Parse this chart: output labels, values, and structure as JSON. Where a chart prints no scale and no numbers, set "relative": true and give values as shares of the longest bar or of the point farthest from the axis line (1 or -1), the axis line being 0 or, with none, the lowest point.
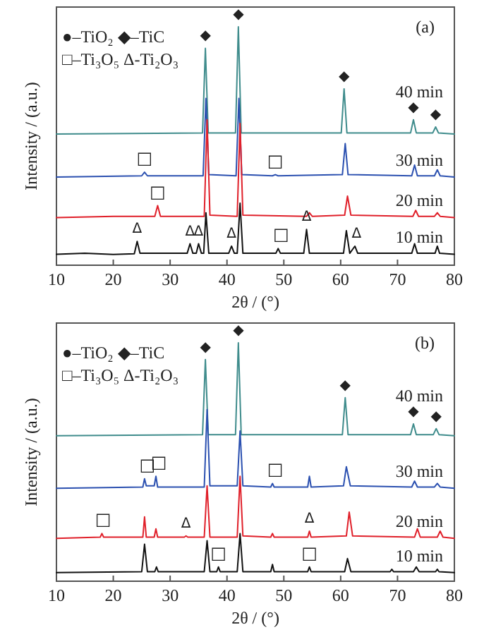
{
  "chart_data": [
    {
      "type": "line",
      "title": "(a)",
      "xlabel": "2θ / (°)",
      "ylabel": "Intensity / (a.u.)",
      "relative": true,
      "xlim": [
        10,
        80
      ],
      "xticks": [
        10,
        20,
        30,
        40,
        50,
        60,
        70,
        80
      ],
      "series": [
        {
          "name": "40 min",
          "color": "#3f8c8c",
          "x": [
            10,
            35.7,
            36.2,
            36.7,
            41.5,
            42,
            42.5,
            60.1,
            60.6,
            61.1,
            72.3,
            72.8,
            73.3,
            76.2,
            76.7,
            77.2,
            80
          ],
          "values": [
            0.55,
            0.555,
            0.91,
            0.555,
            0.555,
            1.0,
            0.555,
            0.555,
            0.74,
            0.555,
            0.555,
            0.61,
            0.555,
            0.555,
            0.58,
            0.555,
            0.55
          ]
        },
        {
          "name": "30 min",
          "color": "#2b50b0",
          "x": [
            10,
            25,
            25.5,
            26,
            35.8,
            36.3,
            36.8,
            41.6,
            42.1,
            42.6,
            48,
            48.5,
            49,
            60.3,
            60.8,
            61.3,
            72.5,
            73,
            73.5,
            76.5,
            77,
            77.5,
            80
          ],
          "values": [
            0.37,
            0.375,
            0.39,
            0.375,
            0.375,
            0.7,
            0.38,
            0.375,
            0.7,
            0.38,
            0.375,
            0.38,
            0.375,
            0.38,
            0.51,
            0.38,
            0.375,
            0.42,
            0.375,
            0.375,
            0.4,
            0.375,
            0.37
          ]
        },
        {
          "name": "20 min",
          "color": "#e0202a",
          "x": [
            10,
            20,
            27.3,
            27.8,
            28.3,
            36,
            36.5,
            37,
            41.8,
            42.3,
            42.8,
            54,
            54.5,
            55,
            60.7,
            61.2,
            61.8,
            72.7,
            73.2,
            73.7,
            76.5,
            77,
            77.5,
            80
          ],
          "values": [
            0.2,
            0.205,
            0.205,
            0.25,
            0.205,
            0.205,
            0.61,
            0.21,
            0.205,
            0.595,
            0.21,
            0.205,
            0.22,
            0.205,
            0.21,
            0.29,
            0.21,
            0.205,
            0.23,
            0.205,
            0.205,
            0.22,
            0.205,
            0.2
          ]
        },
        {
          "name": "10 min",
          "color": "#111111",
          "x": [
            10,
            15,
            20,
            23.7,
            24.2,
            24.7,
            27,
            33,
            33.5,
            34,
            34.6,
            35,
            35.5,
            35.9,
            36.3,
            36.8,
            40.3,
            40.8,
            41.3,
            41.8,
            42.3,
            42.8,
            48.6,
            49,
            49.4,
            53.5,
            54,
            54.5,
            60.5,
            61,
            61.6,
            62.5,
            63,
            72.5,
            73,
            73.5,
            76.6,
            77,
            77.4,
            80
          ],
          "values": [
            0.046,
            0.05,
            0.045,
            0.048,
            0.1,
            0.05,
            0.05,
            0.05,
            0.09,
            0.05,
            0.05,
            0.09,
            0.05,
            0.05,
            0.22,
            0.05,
            0.05,
            0.08,
            0.05,
            0.05,
            0.26,
            0.05,
            0.05,
            0.07,
            0.05,
            0.05,
            0.15,
            0.05,
            0.05,
            0.145,
            0.05,
            0.08,
            0.05,
            0.05,
            0.09,
            0.05,
            0.05,
            0.08,
            0.05,
            0.046
          ]
        }
      ],
      "annotations": [
        "●–TiO₂ ◆–TiC",
        "□–Ti₃O₅ Δ-Ti₂O₃",
        {
          "text": "◆",
          "x": 36.2,
          "y": 0.91
        },
        {
          "text": "◆",
          "x": 42,
          "y": 1.0
        },
        {
          "text": "◆",
          "x": 60.6,
          "y": 0.74
        },
        {
          "text": "◆",
          "x": 72.8,
          "y": 0.61
        },
        {
          "text": "◆",
          "x": 76.7,
          "y": 0.58
        },
        {
          "text": "□",
          "x": 25.5,
          "y": 0.39
        },
        {
          "text": "□",
          "x": 48.5,
          "y": 0.38
        },
        {
          "text": "□",
          "x": 27.8,
          "y": 0.25
        },
        {
          "text": "□",
          "x": 49.5,
          "y": 0.07
        },
        {
          "text": "Δ",
          "x": 24.2,
          "y": 0.1
        },
        {
          "text": "Δ",
          "x": 33.5,
          "y": 0.09
        },
        {
          "text": "Δ",
          "x": 35,
          "y": 0.09
        },
        {
          "text": "Δ",
          "x": 40.8,
          "y": 0.08
        },
        {
          "text": "Δ",
          "x": 54,
          "y": 0.15
        },
        {
          "text": "Δ",
          "x": 62.8,
          "y": 0.08
        }
      ]
    },
    {
      "type": "line",
      "title": "(b)",
      "xlabel": "2θ / (°)",
      "ylabel": "Intensity / (a.u.)",
      "relative": true,
      "xlim": [
        10,
        80
      ],
      "xticks": [
        10,
        20,
        30,
        40,
        50,
        60,
        70,
        80
      ],
      "series": [
        {
          "name": "40 min",
          "color": "#3f8c8c",
          "x": [
            10,
            35.7,
            36.2,
            36.7,
            41.5,
            42,
            42.5,
            60.3,
            60.8,
            61.3,
            72.3,
            72.8,
            73.3,
            76.3,
            76.8,
            77.3,
            80
          ],
          "values": [
            0.61,
            0.615,
            0.93,
            0.615,
            0.615,
            1.0,
            0.615,
            0.615,
            0.77,
            0.615,
            0.615,
            0.66,
            0.615,
            0.615,
            0.64,
            0.615,
            0.61
          ]
        },
        {
          "name": "30 min",
          "color": "#2b50b0",
          "x": [
            10,
            25.2,
            25.5,
            25.8,
            27.2,
            27.5,
            27.8,
            36,
            36.5,
            37,
            41.8,
            42.3,
            42.8,
            47.7,
            48,
            48.3,
            54.2,
            54.5,
            54.8,
            60.5,
            61,
            61.7,
            72.5,
            73,
            73.5,
            76.5,
            77,
            77.5,
            80
          ],
          "values": [
            0.39,
            0.395,
            0.43,
            0.4,
            0.4,
            0.44,
            0.395,
            0.395,
            0.72,
            0.4,
            0.4,
            0.63,
            0.4,
            0.395,
            0.41,
            0.395,
            0.395,
            0.44,
            0.395,
            0.4,
            0.48,
            0.4,
            0.395,
            0.42,
            0.395,
            0.395,
            0.41,
            0.395,
            0.39
          ]
        },
        {
          "name": "20 min",
          "color": "#e0202a",
          "x": [
            10,
            17.7,
            18,
            18.3,
            25.2,
            25.5,
            25.8,
            27.2,
            27.5,
            27.8,
            32.5,
            32.8,
            33.1,
            36,
            36.5,
            37,
            41.8,
            42.3,
            42.8,
            47.7,
            48,
            48.3,
            54.2,
            54.5,
            54.8,
            61,
            61.5,
            62.1,
            73,
            73.5,
            74,
            77,
            77.5,
            78,
            80
          ],
          "values": [
            0.18,
            0.185,
            0.2,
            0.185,
            0.185,
            0.27,
            0.185,
            0.185,
            0.22,
            0.185,
            0.185,
            0.19,
            0.185,
            0.185,
            0.4,
            0.185,
            0.185,
            0.44,
            0.19,
            0.185,
            0.2,
            0.185,
            0.185,
            0.21,
            0.185,
            0.19,
            0.29,
            0.19,
            0.185,
            0.22,
            0.185,
            0.185,
            0.21,
            0.185,
            0.18
          ]
        },
        {
          "name": "10 min",
          "color": "#111111",
          "x": [
            10,
            25,
            25.5,
            26,
            27.3,
            27.6,
            27.9,
            36,
            36.5,
            37,
            38.2,
            38.5,
            38.8,
            41.8,
            42.3,
            42.8,
            47.7,
            48,
            48.3,
            54.2,
            54.5,
            54.8,
            60.7,
            61.2,
            61.8,
            68.7,
            69,
            69.3,
            72.8,
            73.3,
            73.8,
            76.7,
            77,
            77.3,
            80
          ],
          "values": [
            0.036,
            0.04,
            0.155,
            0.04,
            0.04,
            0.06,
            0.04,
            0.04,
            0.17,
            0.04,
            0.04,
            0.06,
            0.04,
            0.04,
            0.2,
            0.04,
            0.04,
            0.07,
            0.04,
            0.04,
            0.06,
            0.04,
            0.04,
            0.095,
            0.04,
            0.04,
            0.05,
            0.04,
            0.04,
            0.06,
            0.04,
            0.04,
            0.05,
            0.04,
            0.036
          ]
        }
      ],
      "annotations": [
        "●–TiO₂ ◆–TiC",
        "□–Ti₃O₅ Δ-Ti₂O₃",
        {
          "text": "◆",
          "x": 36.2,
          "y": 0.93
        },
        {
          "text": "◆",
          "x": 42,
          "y": 1.0
        },
        {
          "text": "◆",
          "x": 60.8,
          "y": 0.77
        },
        {
          "text": "◆",
          "x": 72.8,
          "y": 0.66
        },
        {
          "text": "◆",
          "x": 76.8,
          "y": 0.64
        },
        {
          "text": "□",
          "x": 26,
          "y": 0.43
        },
        {
          "text": "□",
          "x": 28,
          "y": 0.44
        },
        {
          "text": "□",
          "x": 48.5,
          "y": 0.41
        },
        {
          "text": "□",
          "x": 18.2,
          "y": 0.2
        },
        {
          "text": "□",
          "x": 38.5,
          "y": 0.06
        },
        {
          "text": "□",
          "x": 54.5,
          "y": 0.06
        },
        {
          "text": "Δ",
          "x": 32.8,
          "y": 0.19
        },
        {
          "text": "Δ",
          "x": 54.5,
          "y": 0.21
        }
      ]
    }
  ]
}
